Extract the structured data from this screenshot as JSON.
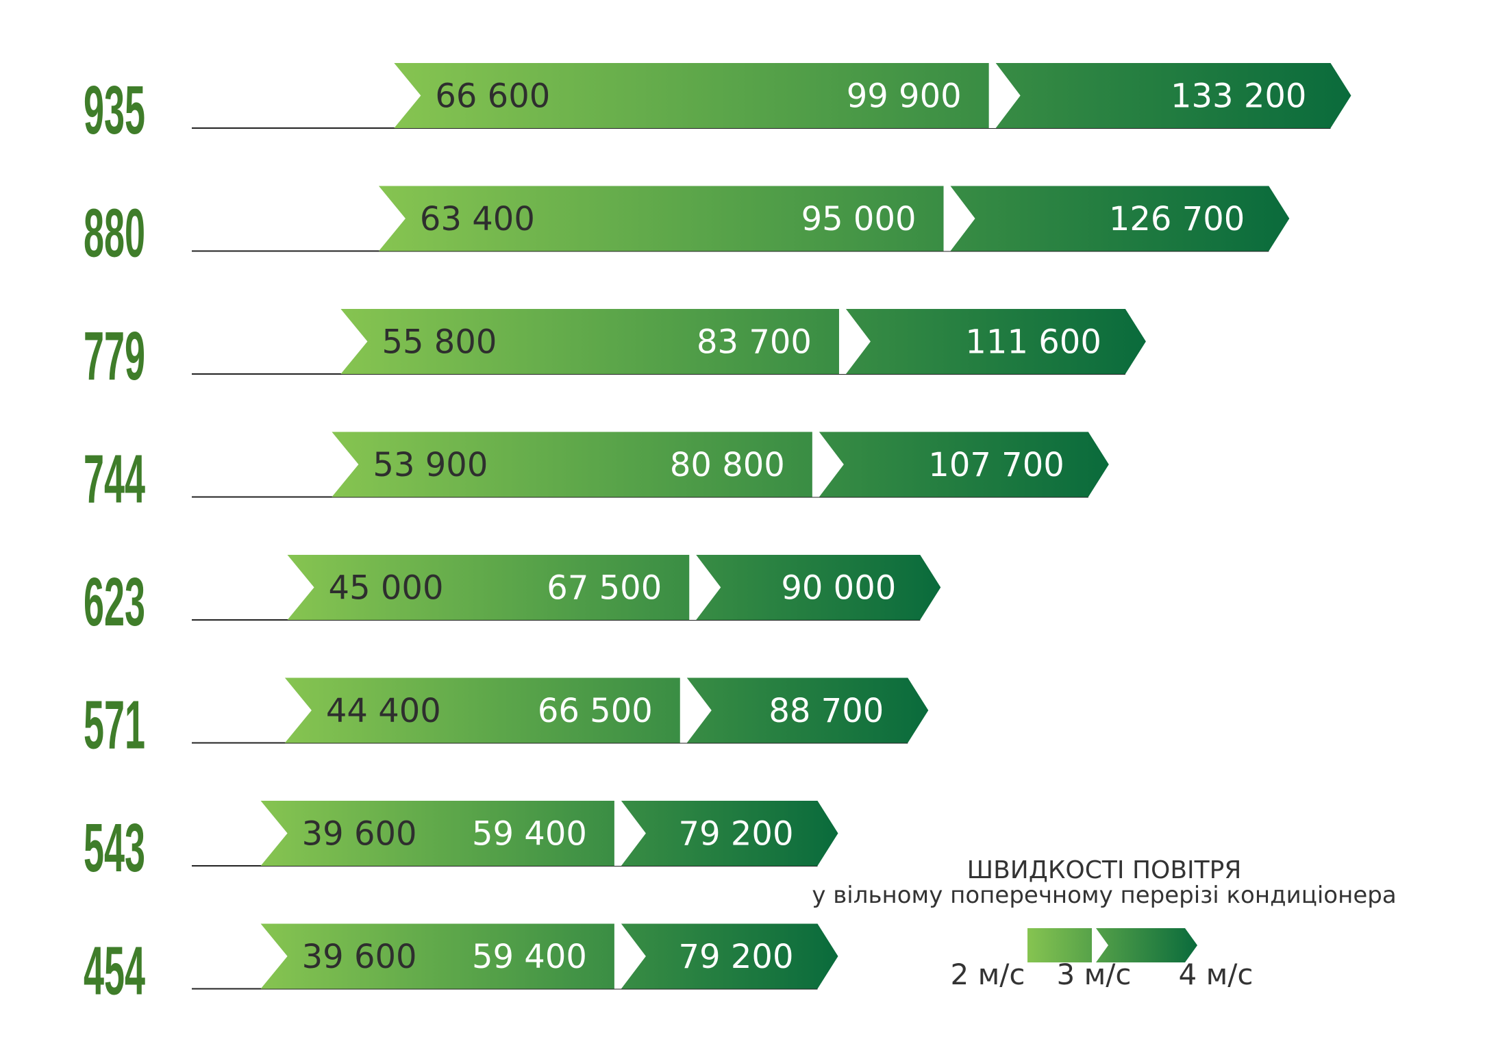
{
  "chart_data": {
    "type": "bar",
    "categories": [
      "935",
      "880",
      "779",
      "744",
      "623",
      "571",
      "543",
      "454"
    ],
    "series": [
      {
        "name": "2 м/с",
        "values": [
          66600,
          63400,
          55800,
          53900,
          45000,
          44400,
          39600,
          39600
        ]
      },
      {
        "name": "3 м/с",
        "values": [
          99900,
          95000,
          83700,
          80800,
          67500,
          66500,
          59400,
          59400
        ]
      },
      {
        "name": "4 м/с",
        "values": [
          133200,
          126700,
          111600,
          107700,
          90000,
          88700,
          79200,
          79200
        ]
      }
    ],
    "value_labels": [
      [
        "66 600",
        "99 900",
        "133 200"
      ],
      [
        "63 400",
        "95 000",
        "126 700"
      ],
      [
        "55 800",
        "83 700",
        "111 600"
      ],
      [
        "53 900",
        "80 800",
        "107 700"
      ],
      [
        "45 000",
        "67 500",
        "90 000"
      ],
      [
        "44 400",
        "66 500",
        "88 700"
      ],
      [
        "39 600",
        "59 400",
        "79 200"
      ],
      [
        "39 600",
        "59 400",
        "79 200"
      ]
    ],
    "orientation": "horizontal",
    "grid": false,
    "legend_position": "bottom-right",
    "colors": {
      "start": "#86c451",
      "end": "#0a6b3c",
      "label": "#3f7d2a"
    }
  },
  "legend": {
    "title": "ШВИДКОСТІ ПОВІТРЯ",
    "subtitle": "у вільному поперечному перерізі кондиціонера",
    "labels": [
      "2 м/с",
      "3 м/с",
      "4 м/с"
    ]
  }
}
